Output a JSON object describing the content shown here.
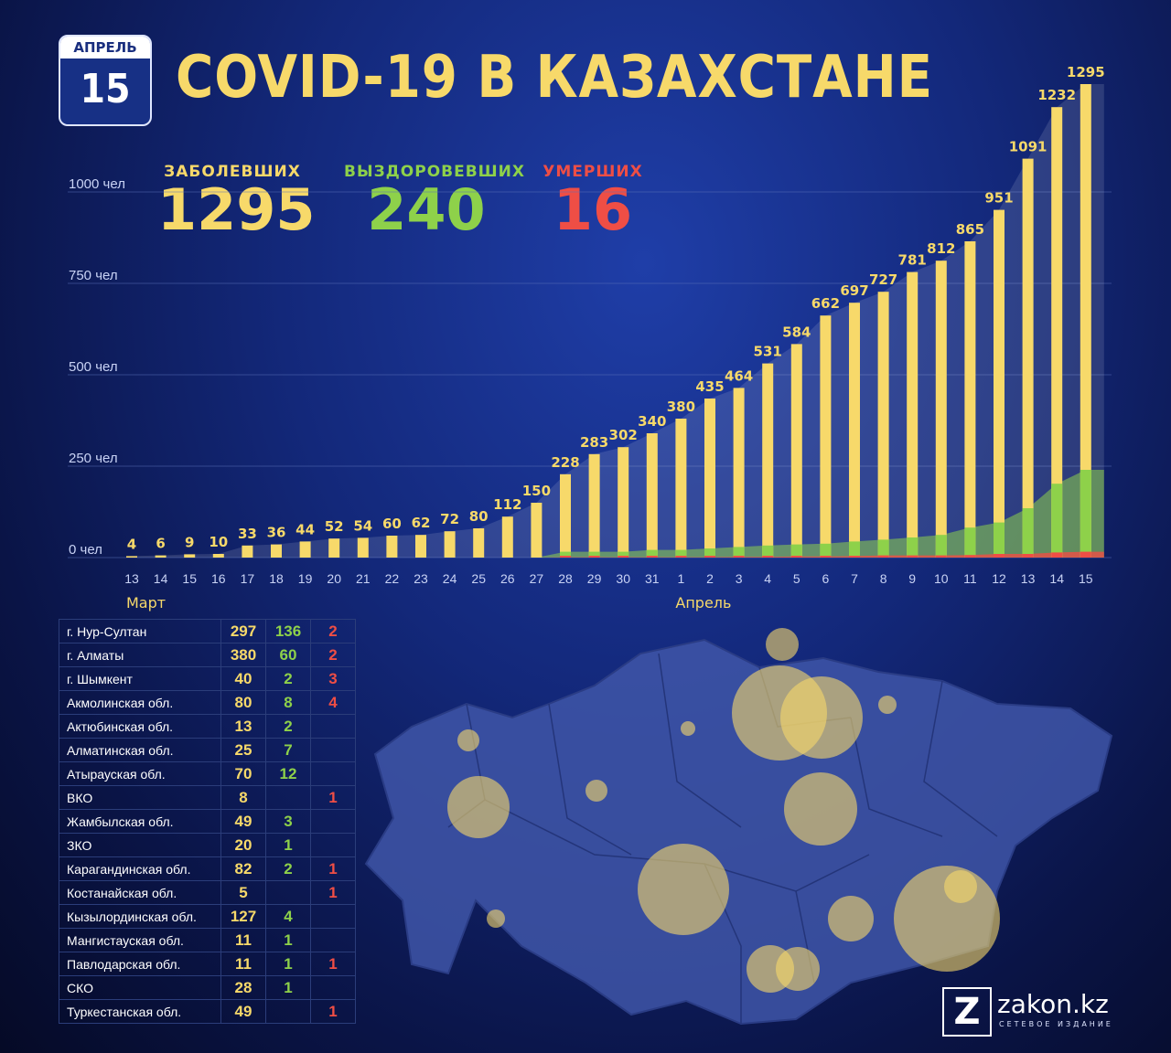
{
  "calendar": {
    "month": "АПРЕЛЬ",
    "day": "15"
  },
  "title": "COVID-19 В КАЗАХСТАНЕ",
  "stats": {
    "infected": {
      "label": "ЗАБОЛЕВШИХ",
      "value": "1295"
    },
    "recovered": {
      "label": "ВЫЗДОРОВЕВШИХ",
      "value": "240"
    },
    "died": {
      "label": "УМЕРШИХ",
      "value": "16"
    }
  },
  "colors": {
    "infected": "#f7d96a",
    "recovered": "#8ed14a",
    "died": "#ef4e45"
  },
  "chart_data": {
    "type": "bar",
    "title": "",
    "ylim": [
      0,
      1300
    ],
    "yticks": [
      {
        "value": 0,
        "label": "0 чел"
      },
      {
        "value": 250,
        "label": "250 чел"
      },
      {
        "value": 500,
        "label": "500 чел"
      },
      {
        "value": 750,
        "label": "750 чел"
      },
      {
        "value": 1000,
        "label": "1000 чел"
      }
    ],
    "grid": true,
    "categories": [
      "13",
      "14",
      "15",
      "16",
      "17",
      "18",
      "19",
      "20",
      "21",
      "22",
      "23",
      "24",
      "25",
      "26",
      "27",
      "28",
      "29",
      "30",
      "31",
      "1",
      "2",
      "3",
      "4",
      "5",
      "6",
      "7",
      "8",
      "9",
      "10",
      "11",
      "12",
      "13",
      "14",
      "15"
    ],
    "month_labels": [
      {
        "label": "Март",
        "at_index": 0
      },
      {
        "label": "Апрель",
        "at_index": 19
      }
    ],
    "series": [
      {
        "values": [
          4,
          6,
          9,
          10,
          33,
          36,
          44,
          52,
          54,
          60,
          62,
          72,
          80,
          112,
          150,
          228,
          283,
          302,
          340,
          380,
          435,
          464,
          531,
          584,
          662,
          697,
          727,
          781,
          812,
          865,
          951,
          1091,
          1232,
          1295
        ]
      },
      {
        "values": [
          0,
          0,
          0,
          0,
          0,
          0,
          0,
          0,
          0,
          0,
          0,
          0,
          0,
          0,
          0,
          16,
          16,
          16,
          21,
          21,
          25,
          29,
          33,
          36,
          38,
          44,
          49,
          55,
          62,
          82,
          96,
          135,
          202,
          240
        ]
      },
      {
        "values": [
          0,
          0,
          0,
          0,
          0,
          0,
          0,
          0,
          0,
          0,
          0,
          0,
          0,
          0,
          0,
          1,
          1,
          1,
          1,
          1,
          1,
          2,
          2,
          3,
          3,
          4,
          6,
          6,
          6,
          7,
          10,
          10,
          14,
          16
        ]
      }
    ]
  },
  "regions_table": [
    {
      "name": "г. Нур-Султан",
      "infected": "297",
      "recovered": "136",
      "died": "2"
    },
    {
      "name": "г. Алматы",
      "infected": "380",
      "recovered": "60",
      "died": "2"
    },
    {
      "name": "г. Шымкент",
      "infected": "40",
      "recovered": "2",
      "died": "3"
    },
    {
      "name": "Акмолинская обл.",
      "infected": "80",
      "recovered": "8",
      "died": "4"
    },
    {
      "name": "Актюбинская обл.",
      "infected": "13",
      "recovered": "2",
      "died": ""
    },
    {
      "name": "Алматинская обл.",
      "infected": "25",
      "recovered": "7",
      "died": ""
    },
    {
      "name": "Атырауская обл.",
      "infected": "70",
      "recovered": "12",
      "died": ""
    },
    {
      "name": "ВКО",
      "infected": "8",
      "recovered": "",
      "died": "1"
    },
    {
      "name": "Жамбылская обл.",
      "infected": "49",
      "recovered": "3",
      "died": ""
    },
    {
      "name": "ЗКО",
      "infected": "20",
      "recovered": "1",
      "died": ""
    },
    {
      "name": "Карагандинская обл.",
      "infected": "82",
      "recovered": "2",
      "died": "1"
    },
    {
      "name": "Костанайская обл.",
      "infected": "5",
      "recovered": "",
      "died": "1"
    },
    {
      "name": "Кызылординская обл.",
      "infected": "127",
      "recovered": "4",
      "died": ""
    },
    {
      "name": "Мангистауская обл.",
      "infected": "11",
      "recovered": "1",
      "died": ""
    },
    {
      "name": "Павлодарская обл.",
      "infected": "11",
      "recovered": "1",
      "died": "1"
    },
    {
      "name": "СКО",
      "infected": "28",
      "recovered": "1",
      "died": ""
    },
    {
      "name": "Туркестанская обл.",
      "infected": "49",
      "recovered": "",
      "died": "1"
    }
  ],
  "logo": {
    "mark": "Z",
    "name": "zakon.kz",
    "subtitle": "СЕТЕВОЕ ИЗДАНИЕ"
  }
}
